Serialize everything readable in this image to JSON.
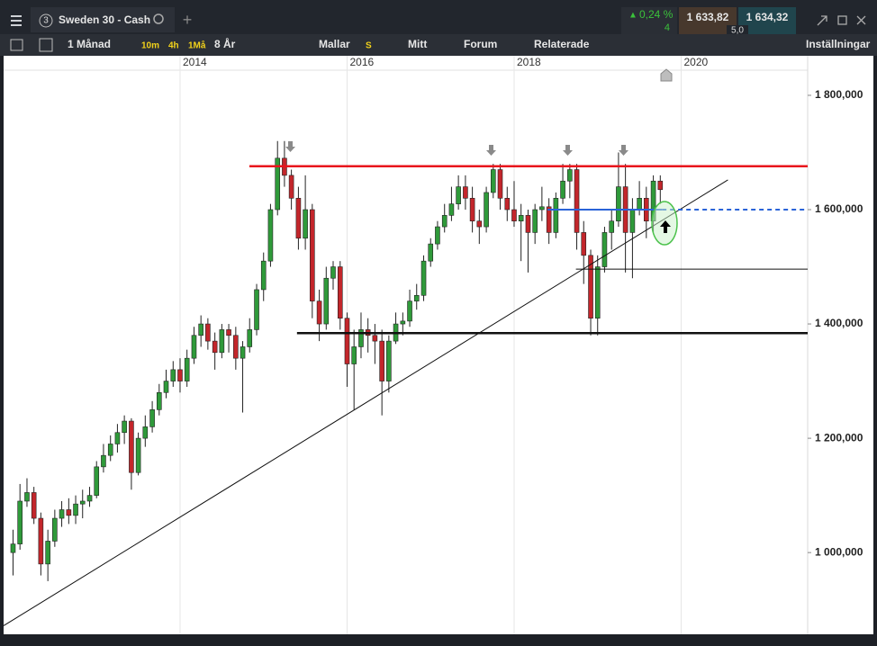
{
  "header": {
    "tab_number": "3",
    "instrument": "Sweden 30 - Cash",
    "change": "0,24 %",
    "change_points": "4",
    "sell": "1 633,82",
    "buy": "1 634,32",
    "spread": "5,0"
  },
  "toolbar": {
    "period": "1 Månad",
    "intervals": [
      "10m",
      "4h",
      "1Må"
    ],
    "range": "8 År",
    "templates": "Mallar",
    "s": "S",
    "mine": "Mitt",
    "forum": "Forum",
    "related": "Relaterade",
    "settings": "Inställningar"
  },
  "chart_data": {
    "type": "candlestick",
    "x": [
      2012,
      2012.083,
      2012.167,
      2012.25,
      2012.333,
      2012.417,
      2012.5,
      2012.583,
      2012.667,
      2012.75,
      2012.833,
      2012.917,
      2013,
      2013.083,
      2013.167,
      2013.25,
      2013.333,
      2013.417,
      2013.5,
      2013.583,
      2013.667,
      2013.75,
      2013.833,
      2013.917,
      2014,
      2014.083,
      2014.167,
      2014.25,
      2014.333,
      2014.417,
      2014.5,
      2014.583,
      2014.667,
      2014.75,
      2014.833,
      2014.917,
      2015,
      2015.083,
      2015.167,
      2015.25,
      2015.333,
      2015.417,
      2015.5,
      2015.583,
      2015.667,
      2015.75,
      2015.833,
      2015.917,
      2016,
      2016.083,
      2016.167,
      2016.25,
      2016.333,
      2016.417,
      2016.5,
      2016.583,
      2016.667,
      2016.75,
      2016.833,
      2016.917,
      2017,
      2017.083,
      2017.167,
      2017.25,
      2017.333,
      2017.417,
      2017.5,
      2017.583,
      2017.667,
      2017.75,
      2017.833,
      2017.917,
      2018,
      2018.083,
      2018.167,
      2018.25,
      2018.333,
      2018.417,
      2018.5,
      2018.583,
      2018.667,
      2018.75,
      2018.833,
      2018.917,
      2019,
      2019.083,
      2019.167,
      2019.25,
      2019.333,
      2019.417,
      2019.5,
      2019.583,
      2019.667,
      2019.75
    ],
    "open": [
      1000,
      1015,
      1090,
      1105,
      1060,
      980,
      1020,
      1060,
      1075,
      1065,
      1085,
      1090,
      1100,
      1150,
      1170,
      1190,
      1210,
      1230,
      1140,
      1200,
      1220,
      1250,
      1280,
      1300,
      1320,
      1300,
      1340,
      1380,
      1400,
      1370,
      1350,
      1390,
      1380,
      1340,
      1360,
      1390,
      1460,
      1510,
      1600,
      1690,
      1660,
      1620,
      1550,
      1600,
      1440,
      1400,
      1480,
      1500,
      1410,
      1330,
      1360,
      1390,
      1380,
      1370,
      1300,
      1370,
      1400,
      1405,
      1440,
      1450,
      1510,
      1540,
      1570,
      1590,
      1610,
      1640,
      1620,
      1580,
      1570,
      1630,
      1670,
      1620,
      1600,
      1580,
      1590,
      1560,
      1600,
      1605,
      1560,
      1620,
      1650,
      1670,
      1560,
      1520,
      1410,
      1500,
      1560,
      1580,
      1640,
      1560,
      1600,
      1620,
      1580,
      1650
    ],
    "high": [
      1040,
      1120,
      1130,
      1115,
      1070,
      1040,
      1075,
      1090,
      1095,
      1100,
      1110,
      1115,
      1160,
      1190,
      1205,
      1225,
      1240,
      1235,
      1210,
      1240,
      1265,
      1295,
      1320,
      1335,
      1340,
      1355,
      1395,
      1415,
      1410,
      1385,
      1400,
      1400,
      1395,
      1370,
      1410,
      1470,
      1525,
      1610,
      1720,
      1720,
      1670,
      1640,
      1660,
      1610,
      1460,
      1500,
      1510,
      1510,
      1420,
      1390,
      1420,
      1410,
      1400,
      1390,
      1380,
      1420,
      1420,
      1460,
      1470,
      1520,
      1550,
      1580,
      1610,
      1640,
      1660,
      1660,
      1640,
      1600,
      1640,
      1680,
      1680,
      1640,
      1650,
      1610,
      1600,
      1610,
      1640,
      1620,
      1630,
      1680,
      1680,
      1680,
      1580,
      1530,
      1520,
      1570,
      1600,
      1700,
      1680,
      1620,
      1650,
      1640,
      1660,
      1660
    ],
    "low": [
      960,
      1005,
      1080,
      1050,
      960,
      950,
      1010,
      1045,
      1050,
      1050,
      1060,
      1080,
      1095,
      1140,
      1160,
      1175,
      1190,
      1110,
      1135,
      1185,
      1210,
      1240,
      1270,
      1290,
      1280,
      1290,
      1330,
      1360,
      1355,
      1320,
      1340,
      1350,
      1320,
      1245,
      1350,
      1380,
      1440,
      1500,
      1590,
      1640,
      1600,
      1530,
      1530,
      1410,
      1370,
      1390,
      1460,
      1390,
      1290,
      1250,
      1340,
      1350,
      1330,
      1240,
      1280,
      1365,
      1380,
      1395,
      1425,
      1440,
      1500,
      1530,
      1560,
      1580,
      1600,
      1600,
      1560,
      1540,
      1560,
      1620,
      1600,
      1580,
      1570,
      1510,
      1490,
      1540,
      1580,
      1540,
      1550,
      1610,
      1620,
      1530,
      1470,
      1380,
      1380,
      1490,
      1530,
      1570,
      1490,
      1480,
      1590,
      1550,
      1560,
      1610
    ],
    "close": [
      1015,
      1090,
      1105,
      1060,
      980,
      1020,
      1060,
      1075,
      1065,
      1085,
      1090,
      1100,
      1150,
      1170,
      1190,
      1210,
      1230,
      1140,
      1200,
      1220,
      1250,
      1280,
      1300,
      1320,
      1300,
      1340,
      1380,
      1400,
      1370,
      1350,
      1390,
      1380,
      1340,
      1360,
      1390,
      1460,
      1510,
      1600,
      1690,
      1660,
      1620,
      1550,
      1600,
      1440,
      1400,
      1480,
      1500,
      1410,
      1330,
      1360,
      1390,
      1380,
      1370,
      1300,
      1370,
      1400,
      1405,
      1440,
      1450,
      1510,
      1540,
      1570,
      1590,
      1610,
      1640,
      1620,
      1580,
      1570,
      1630,
      1670,
      1620,
      1600,
      1580,
      1590,
      1560,
      1600,
      1605,
      1560,
      1620,
      1650,
      1670,
      1560,
      1520,
      1410,
      1500,
      1560,
      1580,
      1640,
      1560,
      1600,
      1620,
      1580,
      1650,
      1635
    ],
    "up_color": "#2f9a3a",
    "down_color": "#c3262b",
    "xlim": [
      2011.887,
      2021.515
    ],
    "xticks": [
      2014,
      2016,
      2018,
      2020
    ],
    "ylim": [
      857,
      1844
    ],
    "yticks": [
      {
        "value": 1000,
        "label": "1 000,000"
      },
      {
        "value": 1200,
        "label": "1 200,000"
      },
      {
        "value": 1400,
        "label": "1 400,000"
      },
      {
        "value": 1600,
        "label": "1 600,000"
      },
      {
        "value": 1800,
        "label": "1 800,000"
      }
    ],
    "grid": true,
    "levels": [
      {
        "y": 1676,
        "x0": 2014.83,
        "color": "#e8141c",
        "style": "heavy"
      },
      {
        "y": 1384,
        "x0": 2015.4,
        "color": "#111111",
        "style": "heavy"
      },
      {
        "y": 1496,
        "x0": 2018.74,
        "color": "#111111",
        "style": "light"
      },
      {
        "y": 1600,
        "x0": 2018.4,
        "dashed_from": 2019.77,
        "color": "#2a63d8",
        "style": "medium"
      }
    ],
    "trendline": {
      "x": [
        2011.887,
        2020.56
      ],
      "y": [
        872,
        1652
      ],
      "color": "#111111"
    }
  }
}
